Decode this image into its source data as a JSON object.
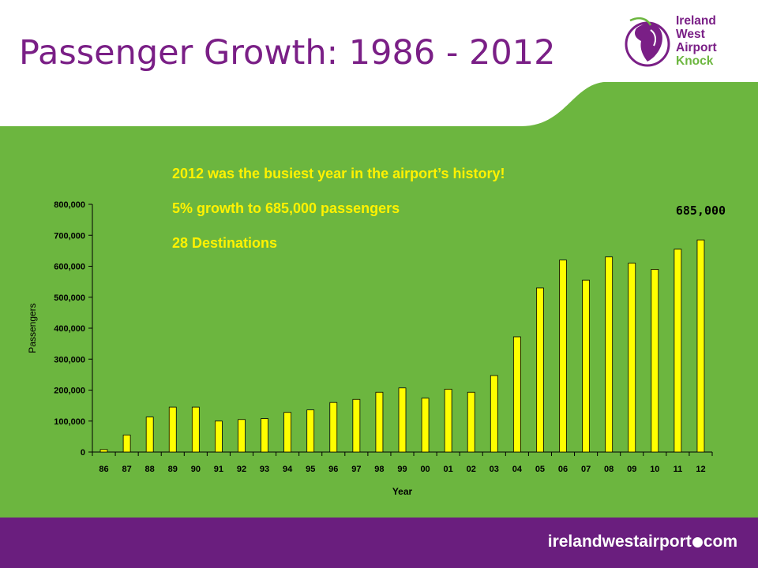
{
  "slide": {
    "title": "Passenger Growth: 1986 - 2012",
    "notes": [
      "2012 was the busiest year in the airport’s history!",
      "5% growth to 685,000 passengers",
      "28 Destinations"
    ],
    "footer_url_before_dot": "irelandwestairport",
    "footer_url_after_dot": "com"
  },
  "logo": {
    "line1": "Ireland",
    "line2": "West",
    "line3": "Airport",
    "line4": "Knock"
  },
  "colors": {
    "brand_purple": "#7a1f86",
    "brand_green": "#6cb63f",
    "bar_fill": "#ffff00",
    "note_text": "#fff200",
    "footer_bg": "#6a1e7e"
  },
  "chart_data": {
    "type": "bar",
    "xlabel": "Year",
    "ylabel": "Passengers",
    "ylim": [
      0,
      800000
    ],
    "yticks": [
      "0",
      "100,000",
      "200,000",
      "300,000",
      "400,000",
      "500,000",
      "600,000",
      "700,000",
      "800,000"
    ],
    "categories": [
      "86",
      "87",
      "88",
      "89",
      "90",
      "91",
      "92",
      "93",
      "94",
      "95",
      "96",
      "97",
      "98",
      "99",
      "00",
      "01",
      "02",
      "03",
      "04",
      "05",
      "06",
      "07",
      "08",
      "09",
      "10",
      "11",
      "12"
    ],
    "values": [
      8000,
      55000,
      113000,
      145000,
      145000,
      100000,
      105000,
      108000,
      128000,
      136000,
      160000,
      170000,
      193000,
      207000,
      174000,
      203000,
      193000,
      247000,
      372000,
      530000,
      620000,
      555000,
      630000,
      610000,
      590000,
      655000,
      685000
    ],
    "annotation": "685,000",
    "grid": false,
    "legend": "none"
  }
}
